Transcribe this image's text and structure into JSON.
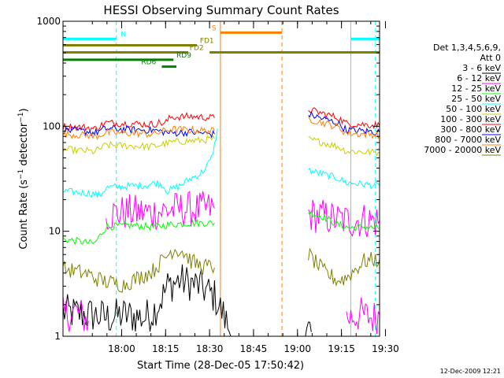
{
  "chart_data": {
    "type": "line",
    "title": "HESSI Observing Summary Count Rates",
    "xlabel": "Start Time (28-Dec-05 17:50:42)",
    "ylabel": "Count Rate (s⁻¹ detector⁻¹)",
    "ylabel_main": "Count Rate (s",
    "ylabel_sup1": "−1",
    "ylabel_mid": " detector",
    "ylabel_sup2": "−1",
    "ylabel_close": ")",
    "yscale": "log",
    "ylim": [
      1,
      1000
    ],
    "xlim_min": [
      -10.7,
      97.3
    ],
    "y_ticks": [
      "1",
      "10",
      "100",
      "1000"
    ],
    "x_ticks": [
      {
        "m": 9.3,
        "label": "18:00"
      },
      {
        "m": 24.3,
        "label": "18:15"
      },
      {
        "m": 39.3,
        "label": "18:30"
      },
      {
        "m": 54.3,
        "label": "18:45"
      },
      {
        "m": 69.3,
        "label": "19:00"
      },
      {
        "m": 84.3,
        "label": "19:15"
      },
      {
        "m": 99.3,
        "label": "19:30"
      }
    ],
    "legend_header": [
      "Det 1,3,4,5,6,9,",
      "Att 0"
    ],
    "legend_position": "right",
    "footer": "12-Dec-2009 12:21",
    "series": [
      {
        "name": "3 - 6 keV",
        "color": "#000000",
        "segments": [
          [
            [
              -10.7,
              1.7
            ],
            [
              -1,
              1.6
            ],
            [
              5,
              1.5
            ],
            [
              10,
              1.6
            ],
            [
              17,
              1.5
            ],
            [
              20,
              1.7
            ],
            [
              23,
              2.3
            ],
            [
              25,
              3.0
            ],
            [
              29,
              3.4
            ],
            [
              33,
              3.2
            ],
            [
              36,
              3.0
            ],
            [
              41,
              2.4
            ],
            [
              44,
              1.6
            ],
            [
              47,
              1.0
            ]
          ],
          [
            [
              72,
              1.0
            ],
            [
              74,
              1.1
            ]
          ]
        ]
      },
      {
        "name": "6 - 12 keV",
        "color": "#ff00ff",
        "segments": [
          [
            [
              -10.7,
              1.6
            ],
            [
              -6,
              1.7
            ],
            [
              -2,
              1.4
            ]
          ],
          [
            [
              86,
              1.5
            ],
            [
              91,
              1.6
            ],
            [
              95,
              1.5
            ],
            [
              97.3,
              1.6
            ]
          ],
          [
            [
              4,
              14.5
            ],
            [
              12,
              15.2
            ],
            [
              20,
              15.0
            ],
            [
              26,
              16.0
            ],
            [
              31,
              16.4
            ],
            [
              35,
              16.0
            ],
            [
              41,
              16.5
            ]
          ],
          [
            [
              73,
              14.5
            ],
            [
              78,
              13.8
            ],
            [
              83,
              12.9
            ],
            [
              87,
              12.6
            ],
            [
              92,
              12.8
            ],
            [
              97.3,
              12.5
            ]
          ]
        ]
      },
      {
        "name": "12 - 25 keV",
        "color": "#00ff00",
        "segments": [
          [
            [
              -10.7,
              8.4
            ],
            [
              -5,
              8.0
            ],
            [
              0,
              7.6
            ],
            [
              4,
              11.0
            ],
            [
              12,
              11.4
            ],
            [
              20,
              11.0
            ],
            [
              26,
              11.6
            ],
            [
              33,
              12.0
            ],
            [
              41,
              12.0
            ]
          ],
          [
            [
              73,
              15.2
            ],
            [
              78,
              13.8
            ],
            [
              83,
              11.6
            ],
            [
              87,
              10.8
            ],
            [
              92,
              11.0
            ],
            [
              97.3,
              10.6
            ]
          ]
        ]
      },
      {
        "name": "25 - 50 keV",
        "color": "#00ffff",
        "segments": [
          [
            [
              -10.7,
              24
            ],
            [
              -2,
              23
            ],
            [
              2,
              22
            ],
            [
              4,
              26
            ],
            [
              12,
              27
            ],
            [
              18,
              27.5
            ],
            [
              21,
              29
            ],
            [
              23,
              28
            ],
            [
              25,
              24
            ],
            [
              29,
              27
            ],
            [
              33,
              32
            ],
            [
              36,
              35
            ],
            [
              38,
              40
            ],
            [
              40,
              50
            ],
            [
              41,
              66
            ],
            [
              42,
              95
            ]
          ],
          [
            [
              73,
              38
            ],
            [
              78,
              35
            ],
            [
              83,
              32
            ],
            [
              86,
              29
            ],
            [
              92,
              28
            ],
            [
              97.3,
              27
            ]
          ]
        ]
      },
      {
        "name": "50 - 100 keV",
        "color": "#cccc00",
        "segments": [
          [
            [
              -10.7,
              60
            ],
            [
              -2,
              58
            ],
            [
              0,
              57
            ],
            [
              4,
              66
            ],
            [
              12,
              65
            ],
            [
              20,
              64
            ],
            [
              26,
              70
            ],
            [
              30,
              72
            ],
            [
              35,
              73
            ],
            [
              41,
              76
            ]
          ],
          [
            [
              73,
              75
            ],
            [
              78,
              70
            ],
            [
              83,
              64
            ],
            [
              86,
              58
            ],
            [
              92,
              57
            ],
            [
              97.3,
              56
            ]
          ]
        ]
      },
      {
        "name": "100 - 300 keV",
        "color": "#ff0000",
        "segments": [
          [
            [
              -10.7,
              100
            ],
            [
              -2,
              97
            ],
            [
              0,
              94
            ],
            [
              4,
              108
            ],
            [
              12,
              106
            ],
            [
              20,
              104
            ],
            [
              22,
              108
            ],
            [
              24,
              106
            ],
            [
              26,
              122
            ],
            [
              33,
              124
            ],
            [
              41,
              120
            ]
          ],
          [
            [
              73,
              145
            ],
            [
              78,
              132
            ],
            [
              83,
              121
            ],
            [
              86,
              106
            ],
            [
              92,
              104
            ],
            [
              97.3,
              102
            ]
          ]
        ]
      },
      {
        "name": "300 - 800 keV",
        "color": "#0000ff",
        "segments": [
          [
            [
              -10.7,
              92
            ],
            [
              -2,
              89
            ],
            [
              0,
              86
            ],
            [
              4,
              95
            ],
            [
              12,
              93
            ],
            [
              20,
              92
            ],
            [
              26,
              86
            ],
            [
              33,
              88
            ],
            [
              41,
              84
            ]
          ],
          [
            [
              73,
              130
            ],
            [
              78,
              118
            ],
            [
              83,
              107
            ],
            [
              86,
              92
            ],
            [
              92,
              90
            ],
            [
              97.3,
              88
            ]
          ]
        ]
      },
      {
        "name": "800 - 7000 keV",
        "color": "#ff8000",
        "segments": [
          [
            [
              -10.7,
              84
            ],
            [
              -2,
              82
            ],
            [
              0,
              79
            ],
            [
              4,
              87
            ],
            [
              12,
              86
            ],
            [
              20,
              84
            ],
            [
              26,
              94
            ],
            [
              33,
              92
            ],
            [
              41,
              90
            ]
          ],
          [
            [
              73,
              118
            ],
            [
              78,
              108
            ],
            [
              83,
              98
            ],
            [
              86,
              86
            ],
            [
              92,
              84
            ],
            [
              97.3,
              83
            ]
          ]
        ]
      },
      {
        "name": "7000 - 20000 keV",
        "color": "#808000",
        "segments": [
          [
            [
              -10.7,
              4.4
            ],
            [
              -2,
              3.9
            ],
            [
              0,
              3.6
            ],
            [
              4,
              3.3
            ],
            [
              10,
              3.1
            ],
            [
              20,
              4.2
            ],
            [
              23,
              5.2
            ],
            [
              27,
              6.8
            ],
            [
              30,
              6.5
            ],
            [
              33,
              5.2
            ],
            [
              36,
              4.7
            ],
            [
              41,
              4.5
            ]
          ],
          [
            [
              73,
              6.0
            ],
            [
              78,
              4.2
            ],
            [
              83,
              3.4
            ],
            [
              86,
              3.6
            ],
            [
              92,
              5.2
            ],
            [
              97.3,
              5.4
            ]
          ]
        ]
      }
    ],
    "annotations": [
      {
        "label": "N",
        "color": "#00ffff",
        "y": 680,
        "spans": [
          [
            -10.7,
            7.5
          ],
          [
            87.5,
            97.3
          ]
        ],
        "label_m": 9.0
      },
      {
        "label": "S",
        "color": "#ff8000",
        "y": 780,
        "spans": [
          [
            43.0,
            64.0
          ]
        ],
        "label_m": 40.0
      },
      {
        "label": "FD1",
        "color": "#808000",
        "y": 590,
        "spans": [
          [
            -10.7,
            35.0
          ]
        ],
        "label_m": 36.0
      },
      {
        "label": "FD2",
        "color": "#808000",
        "y": 505,
        "spans": [
          [
            -10.7,
            32.0
          ],
          [
            39.3,
            97.3
          ]
        ],
        "label_m": 32.5
      },
      {
        "label": "RD9",
        "color": "#008000",
        "y": 430,
        "spans": [
          [
            -10.7,
            27.0
          ]
        ],
        "label_m": 28.0
      },
      {
        "label": "RD6",
        "color": "#008000",
        "y": 370,
        "spans": [
          [
            23.0,
            28.0
          ]
        ],
        "label_m": 16.0
      }
    ],
    "vlines": [
      {
        "m": -10.7,
        "color": "#00ffff",
        "style": "solid"
      },
      {
        "m": 7.5,
        "color": "#00ffff",
        "style": "dashed"
      },
      {
        "m": 87.5,
        "color": "#00ffff",
        "style": "solid"
      },
      {
        "m": 95.9,
        "color": "#00ffff",
        "style": "dashed"
      },
      {
        "m": 43.0,
        "color": "#ff8000",
        "style": "solid"
      },
      {
        "m": 64.0,
        "color": "#ff8000",
        "style": "dashed"
      }
    ]
  }
}
